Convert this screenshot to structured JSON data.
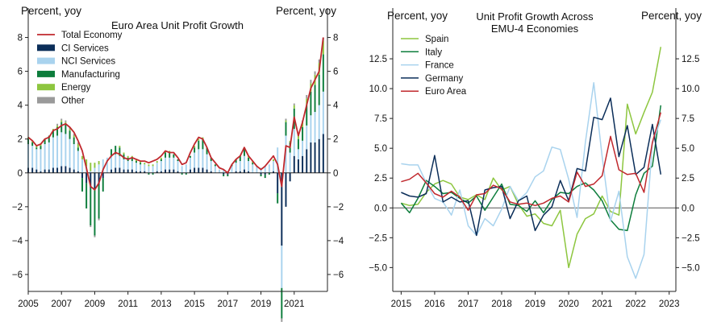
{
  "chart_data": [
    {
      "type": "bar+line",
      "title": "Euro Area Unit Profit Growth",
      "ylabel_left": "Percent, yoy",
      "ylabel_right": "Percent, yoy",
      "ylim": [
        -7,
        8.5
      ],
      "yticks": [
        -6,
        -4,
        -2,
        0,
        2,
        4,
        6,
        8
      ],
      "xticks": [
        "2005",
        "2007",
        "2009",
        "2011",
        "2013",
        "2015",
        "2017",
        "2019",
        "2021"
      ],
      "xrange": [
        2005.0,
        2023.0
      ],
      "legend": [
        "Total Economy",
        "CI Services",
        "NCI Services",
        "Manufacturing",
        "Energy",
        "Other"
      ],
      "colors": {
        "Total Economy": "#c0282d",
        "CI Services": "#0b2e59",
        "NCI Services": "#a9d3ee",
        "Manufacturing": "#0d7d3c",
        "Energy": "#8dc63f",
        "Other": "#9a9a9a"
      },
      "x": [
        2005.0,
        2005.25,
        2005.5,
        2005.75,
        2006.0,
        2006.25,
        2006.5,
        2006.75,
        2007.0,
        2007.25,
        2007.5,
        2007.75,
        2008.0,
        2008.25,
        2008.5,
        2008.75,
        2009.0,
        2009.25,
        2009.5,
        2009.75,
        2010.0,
        2010.25,
        2010.5,
        2010.75,
        2011.0,
        2011.25,
        2011.5,
        2011.75,
        2012.0,
        2012.25,
        2012.5,
        2012.75,
        2013.0,
        2013.25,
        2013.5,
        2013.75,
        2014.0,
        2014.25,
        2014.5,
        2014.75,
        2015.0,
        2015.25,
        2015.5,
        2015.75,
        2016.0,
        2016.25,
        2016.5,
        2016.75,
        2017.0,
        2017.25,
        2017.5,
        2017.75,
        2018.0,
        2018.25,
        2018.5,
        2018.75,
        2019.0,
        2019.25,
        2019.5,
        2019.75,
        2020.0,
        2020.25,
        2020.5,
        2020.75,
        2021.0,
        2021.25,
        2021.5,
        2021.75,
        2022.0,
        2022.25,
        2022.5,
        2022.75
      ],
      "series": [
        {
          "name": "Total Economy",
          "values": [
            2.1,
            1.9,
            1.6,
            1.7,
            2.0,
            2.1,
            2.5,
            2.6,
            2.8,
            2.9,
            2.7,
            2.4,
            1.9,
            1.3,
            0.3,
            -0.8,
            -1.0,
            -0.6,
            0.2,
            0.7,
            1.0,
            1.2,
            1.1,
            0.9,
            0.8,
            0.9,
            0.8,
            0.7,
            0.7,
            0.6,
            0.7,
            0.8,
            1.0,
            1.3,
            1.2,
            1.2,
            0.9,
            0.5,
            0.6,
            1.2,
            1.7,
            2.1,
            2.0,
            1.5,
            0.9,
            0.6,
            0.3,
            0.2,
            0.0,
            0.5,
            0.8,
            1.0,
            1.5,
            1.0,
            0.7,
            0.4,
            0.2,
            0.4,
            0.7,
            1.0,
            0.5,
            -0.8,
            1.6,
            1.5,
            3.3,
            2.2,
            3.0,
            4.0,
            5.0,
            5.5,
            6.0,
            8.0
          ]
        },
        {
          "name": "CI Services",
          "values": [
            0.3,
            0.3,
            0.2,
            0.1,
            0.2,
            0.2,
            0.3,
            0.3,
            0.4,
            0.4,
            0.3,
            0.2,
            0.1,
            -0.3,
            -0.6,
            -0.9,
            -1.0,
            -0.7,
            -0.3,
            0.0,
            0.2,
            0.3,
            0.3,
            0.2,
            0.2,
            0.2,
            0.1,
            0.1,
            0.1,
            0.0,
            0.0,
            0.1,
            0.1,
            0.2,
            0.2,
            0.2,
            0.1,
            0.0,
            0.0,
            0.2,
            0.3,
            0.3,
            0.3,
            0.2,
            0.1,
            0.0,
            0.0,
            -0.1,
            -0.1,
            0.0,
            0.1,
            0.1,
            0.2,
            0.1,
            0.0,
            0.0,
            -0.1,
            -0.1,
            0.0,
            0.1,
            -1.2,
            -4.3,
            -2.0,
            -0.5,
            1.0,
            0.8,
            1.0,
            1.4,
            1.8,
            1.8,
            2.0,
            2.3
          ]
        },
        {
          "name": "NCI Services",
          "values": [
            1.4,
            1.3,
            1.2,
            1.3,
            1.5,
            1.6,
            1.8,
            1.9,
            2.0,
            1.9,
            1.7,
            1.5,
            1.2,
            0.8,
            0.4,
            0.1,
            0.3,
            0.5,
            0.8,
            0.9,
            0.8,
            0.8,
            0.7,
            0.6,
            0.5,
            0.5,
            0.5,
            0.4,
            0.4,
            0.4,
            0.4,
            0.5,
            0.6,
            0.7,
            0.7,
            0.7,
            0.6,
            0.4,
            0.5,
            0.7,
            0.9,
            1.1,
            1.1,
            0.9,
            0.6,
            0.4,
            0.2,
            0.2,
            0.1,
            0.4,
            0.5,
            0.6,
            0.8,
            0.6,
            0.5,
            0.4,
            0.3,
            0.4,
            0.5,
            0.6,
            1.5,
            -2.5,
            2.2,
            1.2,
            1.6,
            0.6,
            0.9,
            1.4,
            1.6,
            1.8,
            2.0,
            2.5
          ]
        },
        {
          "name": "Manufacturing",
          "values": [
            0.3,
            0.2,
            0.1,
            0.2,
            0.3,
            0.4,
            0.4,
            0.5,
            0.6,
            0.6,
            0.5,
            0.4,
            0.2,
            -0.8,
            -1.5,
            -2.2,
            -2.7,
            -2.0,
            -0.8,
            0.0,
            0.4,
            0.5,
            0.5,
            0.3,
            0.2,
            0.2,
            0.1,
            0.1,
            0.0,
            -0.1,
            -0.1,
            0.0,
            0.1,
            0.3,
            0.3,
            0.2,
            0.1,
            -0.1,
            -0.1,
            0.1,
            0.3,
            0.5,
            0.6,
            0.4,
            0.2,
            0.1,
            0.0,
            -0.1,
            -0.1,
            0.1,
            0.2,
            0.3,
            0.4,
            0.2,
            0.1,
            0.0,
            -0.1,
            -0.2,
            -0.1,
            0.0,
            -0.6,
            -1.8,
            0.8,
            0.6,
            1.2,
            0.6,
            0.8,
            1.2,
            1.4,
            1.6,
            1.8,
            2.2
          ]
        },
        {
          "name": "Energy",
          "values": [
            0.1,
            0.1,
            0.1,
            0.1,
            0.0,
            0.0,
            0.1,
            0.1,
            0.1,
            0.1,
            0.1,
            0.1,
            0.2,
            0.2,
            0.4,
            0.5,
            0.3,
            0.2,
            0.0,
            0.0,
            0.0,
            0.0,
            0.1,
            0.1,
            0.1,
            0.1,
            0.1,
            0.1,
            0.1,
            0.1,
            0.1,
            0.1,
            0.1,
            0.1,
            0.1,
            0.0,
            0.0,
            0.0,
            0.0,
            0.0,
            0.1,
            0.1,
            0.1,
            0.0,
            0.0,
            0.0,
            0.0,
            0.0,
            0.0,
            0.0,
            0.0,
            0.0,
            0.1,
            0.1,
            0.1,
            0.0,
            0.0,
            0.0,
            0.0,
            0.1,
            0.0,
            0.0,
            0.1,
            0.1,
            0.2,
            0.2,
            0.3,
            0.4,
            0.5,
            0.6,
            0.7,
            0.8
          ]
        },
        {
          "name": "Other",
          "values": [
            0.0,
            0.0,
            0.0,
            0.0,
            0.0,
            0.0,
            0.0,
            0.1,
            0.1,
            0.1,
            0.1,
            0.1,
            0.1,
            0.0,
            0.0,
            -0.1,
            -0.1,
            -0.1,
            0.0,
            0.0,
            0.0,
            0.0,
            0.0,
            0.0,
            0.0,
            0.0,
            0.0,
            0.0,
            0.0,
            0.0,
            0.0,
            0.0,
            0.0,
            0.0,
            0.0,
            0.0,
            0.0,
            0.0,
            0.0,
            0.0,
            0.0,
            0.0,
            0.0,
            0.0,
            0.0,
            0.0,
            0.0,
            0.0,
            0.0,
            0.0,
            0.0,
            0.0,
            0.0,
            0.0,
            0.0,
            0.0,
            0.0,
            0.0,
            0.0,
            0.0,
            0.0,
            -0.2,
            0.1,
            0.0,
            0.1,
            0.1,
            0.1,
            0.2,
            0.2,
            0.2,
            0.2,
            0.2
          ]
        }
      ]
    },
    {
      "type": "line",
      "title": "Unit Profit Growth Across",
      "title_line2": "EMU-4 Economies",
      "ylabel_left": "Percent, yoy",
      "ylabel_right": "Percent, yoy",
      "ylim": [
        -7.0,
        15.0
      ],
      "yticks": [
        -5.0,
        -2.5,
        0.0,
        2.5,
        5.0,
        7.5,
        10.0,
        12.5
      ],
      "xticks": [
        "2015",
        "2016",
        "2017",
        "2018",
        "2019",
        "2020",
        "2021",
        "2022",
        "2023"
      ],
      "xrange": [
        2014.75,
        2023.2
      ],
      "legend": [
        "Spain",
        "Italy",
        "France",
        "Germany",
        "Euro Area"
      ],
      "colors": {
        "Spain": "#8dc63f",
        "Italy": "#0d7d3c",
        "France": "#a9d3ee",
        "Germany": "#0b2e59",
        "Euro Area": "#c0282d"
      },
      "x": [
        2015.0,
        2015.25,
        2015.5,
        2015.75,
        2016.0,
        2016.25,
        2016.5,
        2016.75,
        2017.0,
        2017.25,
        2017.5,
        2017.75,
        2018.0,
        2018.25,
        2018.5,
        2018.75,
        2019.0,
        2019.25,
        2019.5,
        2019.75,
        2020.0,
        2020.25,
        2020.5,
        2020.75,
        2021.0,
        2021.25,
        2021.5,
        2021.75,
        2022.0,
        2022.25,
        2022.5,
        2022.75
      ],
      "series": [
        {
          "name": "Spain",
          "values": [
            0.4,
            0.2,
            0.3,
            1.3,
            2.0,
            2.3,
            2.0,
            0.9,
            0.7,
            1.1,
            0.7,
            2.5,
            1.5,
            1.8,
            0.3,
            -0.7,
            -0.5,
            -1.3,
            -1.5,
            -0.2,
            -5.0,
            -2.2,
            -0.9,
            -0.5,
            1.0,
            -0.3,
            -0.6,
            8.7,
            6.2,
            8.0,
            9.7,
            13.5
          ]
        },
        {
          "name": "Italy",
          "values": [
            0.4,
            -0.4,
            0.8,
            2.3,
            1.8,
            1.2,
            1.3,
            0.8,
            0.4,
            1.0,
            -0.2,
            0.9,
            2.0,
            0.3,
            0.2,
            -0.3,
            0.6,
            -0.4,
            0.7,
            1.3,
            1.2,
            1.8,
            2.1,
            1.5,
            0.6,
            -1.0,
            -1.8,
            -1.9,
            1.1,
            2.9,
            3.5,
            8.6
          ]
        },
        {
          "name": "France",
          "values": [
            3.7,
            3.6,
            3.6,
            2.1,
            0.8,
            0.5,
            -0.6,
            1.5,
            -1.5,
            -2.3,
            -0.9,
            -1.5,
            -0.1,
            1.8,
            0.6,
            1.3,
            2.6,
            3.1,
            5.1,
            4.9,
            2.4,
            -0.8,
            5.5,
            10.5,
            4.3,
            -1.1,
            1.4,
            -4.1,
            -5.9,
            -3.9,
            5.4,
            7.4
          ]
        },
        {
          "name": "Germany",
          "values": [
            1.3,
            1.0,
            0.9,
            1.2,
            4.4,
            0.5,
            0.9,
            0.5,
            0.6,
            -2.3,
            1.5,
            1.7,
            1.8,
            -0.9,
            0.6,
            1.0,
            -1.9,
            -0.6,
            0.1,
            2.3,
            0.6,
            3.3,
            3.1,
            7.6,
            7.4,
            9.2,
            4.3,
            6.9,
            2.8,
            3.4,
            7.0,
            2.8
          ]
        },
        {
          "name": "Euro Area",
          "values": [
            2.2,
            2.4,
            2.9,
            2.1,
            1.2,
            0.9,
            1.4,
            0.9,
            -0.2,
            1.1,
            1.2,
            1.9,
            1.6,
            0.5,
            0.3,
            0.4,
            0.2,
            0.4,
            0.8,
            1.0,
            0.5,
            3.0,
            1.8,
            2.0,
            2.7,
            6.0,
            3.2,
            2.8,
            2.9,
            1.3,
            5.5,
            8.0
          ]
        }
      ]
    }
  ]
}
